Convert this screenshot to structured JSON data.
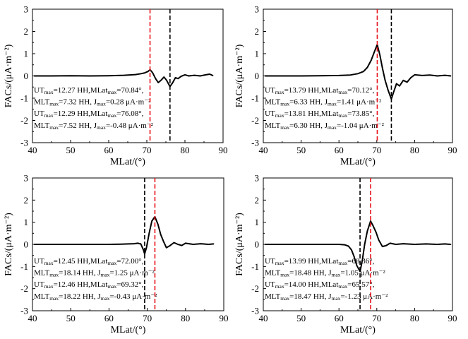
{
  "chart_data": [
    {
      "type": "line",
      "panel": "top-left",
      "xlabel": "MLat/(°)",
      "ylabel": "FACs/(μA·m⁻²)",
      "xlim": [
        40,
        90
      ],
      "ylim": [
        -3,
        3
      ],
      "xticks": [
        "40",
        "50",
        "60",
        "70",
        "80",
        "90"
      ],
      "yticks": [
        "-3",
        "-2",
        "-1",
        "0",
        "1",
        "2",
        "3"
      ],
      "series": [
        {
          "name": "FACs",
          "color": "#000000",
          "x": [
            40.5,
            45,
            50,
            55,
            60,
            64,
            67,
            68.5,
            69.5,
            70.3,
            70.84,
            71.5,
            72.3,
            73,
            73.8,
            74.5,
            75.2,
            76.08,
            76.8,
            77.5,
            78.2,
            79,
            80,
            81,
            82.5,
            84,
            85.5,
            86.5,
            87.3
          ],
          "y": [
            0.0,
            0.0,
            0.01,
            0.0,
            0.01,
            0.03,
            0.06,
            0.1,
            0.14,
            0.2,
            0.28,
            0.15,
            -0.12,
            -0.3,
            -0.18,
            -0.05,
            -0.2,
            -0.48,
            -0.3,
            -0.08,
            -0.12,
            -0.02,
            0.05,
            0.0,
            0.03,
            0.0,
            0.05,
            0.08,
            0.02
          ]
        }
      ],
      "vlines": [
        {
          "x": 70.84,
          "color": "#e8141c"
        },
        {
          "x": 76.08,
          "color": "#000000"
        }
      ],
      "annotations": [
        {
          "parts": [
            "UT",
            "max",
            "=12.27 HH,MLat",
            "max",
            "=70.84°,"
          ]
        },
        {
          "parts": [
            "MLT",
            "max",
            "=7.32 HH, J",
            "max",
            "=0.28 μA·m⁻²"
          ]
        },
        {
          "parts": [
            "UT",
            "max",
            "=12.29 HH,MLat",
            "max",
            "=76.08°,"
          ]
        },
        {
          "parts": [
            "MLT",
            "max",
            "=7.52 HH, J",
            "max",
            "=-0.48 μA·m⁻²"
          ]
        }
      ]
    },
    {
      "type": "line",
      "panel": "top-right",
      "xlabel": "MLat/(°)",
      "ylabel": "FACs/(μA·m⁻²)",
      "xlim": [
        40,
        90
      ],
      "ylim": [
        -3,
        3
      ],
      "xticks": [
        "40",
        "50",
        "60",
        "70",
        "80",
        "90"
      ],
      "yticks": [
        "-3",
        "-2",
        "-1",
        "0",
        "1",
        "2",
        "3"
      ],
      "series": [
        {
          "name": "FACs",
          "color": "#000000",
          "x": [
            40.5,
            45,
            50,
            55,
            60,
            63,
            65,
            66.5,
            67.5,
            68.5,
            69.3,
            70.12,
            70.8,
            71.5,
            72.2,
            73,
            73.85,
            74.5,
            75.2,
            76,
            77,
            78,
            79,
            80,
            82,
            84,
            86,
            88,
            89.5
          ],
          "y": [
            0.0,
            0.0,
            0.0,
            0.01,
            0.02,
            0.04,
            0.1,
            0.2,
            0.38,
            0.7,
            1.05,
            1.41,
            0.95,
            0.35,
            -0.2,
            -0.65,
            -1.04,
            -0.7,
            -0.35,
            -0.45,
            -0.2,
            -0.28,
            -0.08,
            0.05,
            0.02,
            0.04,
            0.0,
            0.03,
            0.0
          ]
        }
      ],
      "vlines": [
        {
          "x": 70.12,
          "color": "#e8141c"
        },
        {
          "x": 73.85,
          "color": "#000000"
        }
      ],
      "annotations": [
        {
          "parts": [
            "UT",
            "max",
            "=13.79 HH,MLat",
            "max",
            "=70.12°,"
          ]
        },
        {
          "parts": [
            "MLT",
            "max",
            "=6.33 HH, J",
            "max",
            "=1.41 μA·m⁻²"
          ]
        },
        {
          "parts": [
            "UT",
            "max",
            "=13.81 HH,MLat",
            "max",
            "=73.85°,"
          ]
        },
        {
          "parts": [
            "MLT",
            "max",
            "=6.30 HH, J",
            "max",
            "=-1.04 μA·m⁻²"
          ]
        }
      ]
    },
    {
      "type": "line",
      "panel": "bottom-left",
      "xlabel": "MLat/(°)",
      "ylabel": "FACs/(μA·m⁻²)",
      "xlim": [
        40,
        90
      ],
      "ylim": [
        -3,
        3
      ],
      "xticks": [
        "40",
        "50",
        "60",
        "70",
        "80",
        "90"
      ],
      "yticks": [
        "-3",
        "-2",
        "-1",
        "0",
        "1",
        "2",
        "3"
      ],
      "series": [
        {
          "name": "FACs",
          "color": "#000000",
          "x": [
            40.5,
            45,
            50,
            55,
            60,
            63,
            65,
            66.5,
            67.5,
            68.3,
            69,
            69.32,
            69.8,
            70.5,
            71.2,
            72.0,
            72.8,
            73.5,
            74.2,
            75,
            76,
            77,
            78,
            79,
            80,
            82,
            84,
            86,
            87.3
          ],
          "y": [
            0.0,
            0.0,
            0.0,
            0.0,
            0.0,
            0.01,
            0.02,
            0.03,
            0.05,
            0.02,
            -0.25,
            -0.43,
            -0.15,
            0.5,
            1.05,
            1.25,
            0.9,
            0.45,
            0.15,
            -0.15,
            -0.05,
            0.08,
            0.0,
            -0.05,
            0.05,
            0.0,
            0.03,
            0.0,
            0.02
          ]
        }
      ],
      "vlines": [
        {
          "x": 72.0,
          "color": "#e8141c"
        },
        {
          "x": 69.32,
          "color": "#000000"
        }
      ],
      "annotations": [
        {
          "parts": [
            "UT",
            "max",
            "=12.45 HH,MLat",
            "max",
            "=72.00°,"
          ]
        },
        {
          "parts": [
            "MLT",
            "max",
            "=18.14 HH, J",
            "max",
            "=1.25 μA·m⁻²"
          ]
        },
        {
          "parts": [
            "UT",
            "max",
            "=12.46 HH,MLat",
            "max",
            "=69.32°,"
          ]
        },
        {
          "parts": [
            "MLT",
            "max",
            "=18.22 HH, J",
            "max",
            "=-0.43 μA·m⁻²"
          ]
        }
      ]
    },
    {
      "type": "line",
      "panel": "bottom-right",
      "xlabel": "MLat/(°)",
      "ylabel": "FACs/(μA·m⁻²)",
      "xlim": [
        40,
        90
      ],
      "ylim": [
        -3,
        3
      ],
      "xticks": [
        "40",
        "50",
        "60",
        "70",
        "80",
        "90"
      ],
      "yticks": [
        "-3",
        "-2",
        "-1",
        "0",
        "1",
        "2",
        "3"
      ],
      "series": [
        {
          "name": "FACs",
          "color": "#000000",
          "x": [
            40.5,
            45,
            50,
            55,
            58,
            60,
            61.5,
            62.5,
            63.3,
            64,
            64.7,
            65.57,
            66.2,
            66.8,
            67.5,
            68.36,
            69,
            69.8,
            70.5,
            71.5,
            72.5,
            73.5,
            75,
            77,
            80,
            83,
            86,
            88,
            89.5
          ],
          "y": [
            0.0,
            0.0,
            0.0,
            0.0,
            0.0,
            0.0,
            -0.02,
            -0.08,
            -0.25,
            -0.55,
            -0.95,
            -1.23,
            -0.7,
            0.0,
            0.6,
            1.05,
            0.85,
            0.55,
            0.2,
            -0.1,
            -0.05,
            0.05,
            0.0,
            0.03,
            0.0,
            0.02,
            0.0,
            0.02,
            0.0
          ]
        }
      ],
      "vlines": [
        {
          "x": 68.36,
          "color": "#e8141c"
        },
        {
          "x": 65.57,
          "color": "#000000"
        }
      ],
      "annotations": [
        {
          "parts": [
            "UT",
            "max",
            "=13.99 HH,MLat",
            "max",
            "=68.36°,"
          ]
        },
        {
          "parts": [
            "MLT",
            "max",
            "=18.48 HH, J",
            "max",
            "=1.05 μA·m⁻²"
          ]
        },
        {
          "parts": [
            "UT",
            "max",
            "=14.00 HH,MLat",
            "max",
            "=65.57°,"
          ]
        },
        {
          "parts": [
            "MLT",
            "max",
            "=18.47 HH, J",
            "max",
            "=-1.23 μA·m⁻²"
          ]
        }
      ]
    }
  ]
}
